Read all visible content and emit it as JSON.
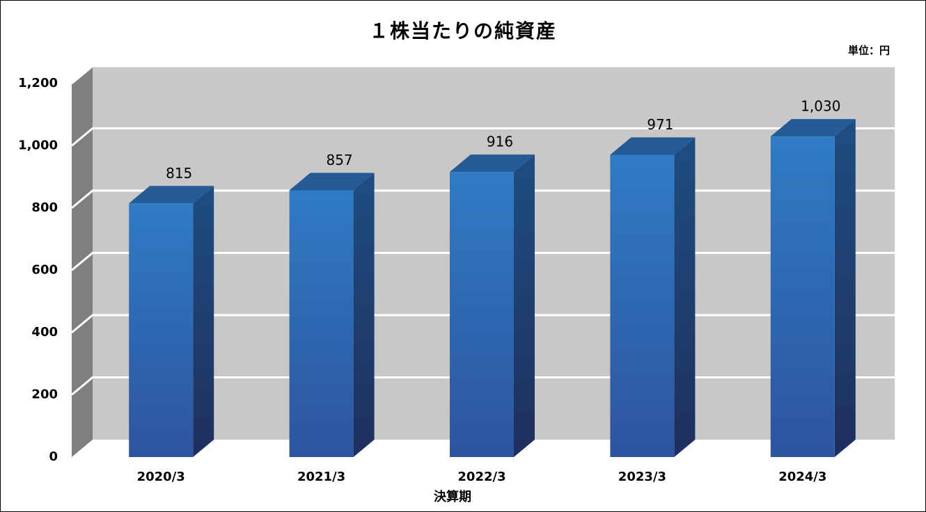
{
  "chart_data": {
    "type": "bar3d",
    "title": "１株当たりの純資産",
    "unit_label": "単位：円",
    "x_label": "決算期",
    "categories": [
      "2020/3",
      "2021/3",
      "2022/3",
      "2023/3",
      "2024/3"
    ],
    "values": [
      815,
      857,
      916,
      971,
      1030
    ],
    "value_labels": [
      "815",
      "857",
      "916",
      "971",
      "1,030"
    ],
    "color": "#2f74bd",
    "ylim": [
      0,
      1200
    ],
    "yticks": [
      0,
      200,
      400,
      600,
      800,
      {
        "value": 1000,
        "label": "1,000"
      },
      {
        "value": 1200,
        "label": "1,200"
      }
    ],
    "grid": true
  }
}
